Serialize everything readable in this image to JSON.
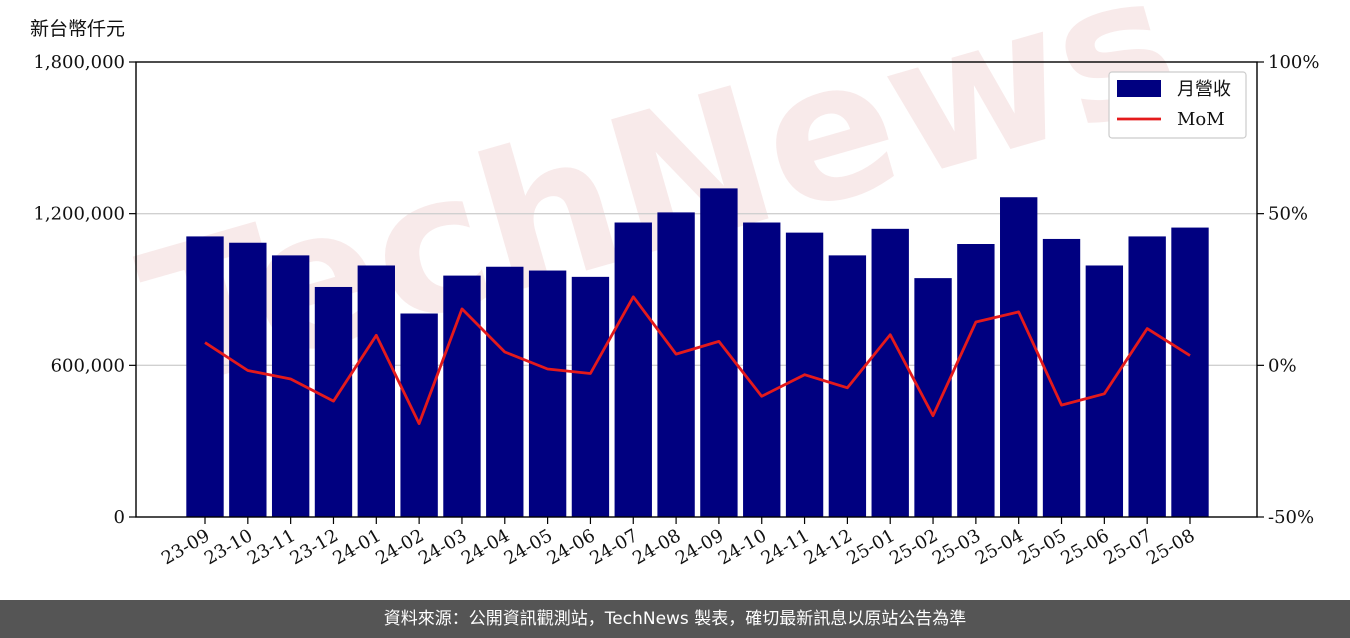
{
  "y_axis_unit": "新台幣仟元",
  "footer": "資料來源：公開資訊觀測站，TechNews 製表，確切最新訊息以原站公告為準",
  "watermark": "TechNews",
  "colors": {
    "bar": "#000080",
    "line": "#e41a1c",
    "grid": "#d0d0d0"
  },
  "chart_data": {
    "type": "bar",
    "categories": [
      "23-09",
      "23-10",
      "23-11",
      "23-12",
      "24-01",
      "24-02",
      "24-03",
      "24-04",
      "24-05",
      "24-06",
      "24-07",
      "24-08",
      "24-09",
      "24-10",
      "24-11",
      "24-12",
      "25-01",
      "25-02",
      "25-03",
      "25-04",
      "25-05",
      "25-06",
      "25-07",
      "25-08"
    ],
    "series": [
      {
        "name": "月營收",
        "type": "bar",
        "axis": "left",
        "values": [
          1110000,
          1085000,
          1035000,
          910000,
          995000,
          805000,
          955000,
          990000,
          975000,
          950000,
          1165000,
          1205000,
          1300000,
          1165000,
          1125000,
          1035000,
          1140000,
          945000,
          1080000,
          1265000,
          1100000,
          995000,
          1110000,
          1145000
        ]
      },
      {
        "name": "MoM",
        "type": "line",
        "axis": "right",
        "values": [
          7.5,
          -1.7,
          -4.5,
          -11.8,
          9.9,
          -19.2,
          18.6,
          4.4,
          -1.2,
          -2.7,
          22.6,
          3.7,
          7.9,
          -10.2,
          -3.1,
          -7.4,
          10.1,
          -16.6,
          14.3,
          17.6,
          -13.1,
          -9.4,
          12.1,
          3.2
        ]
      }
    ],
    "y_left": {
      "ylim": [
        0,
        1800000
      ],
      "ticks": [
        0,
        600000,
        1200000,
        1800000
      ],
      "tick_labels": [
        "0",
        "600,000",
        "1,200,000",
        "1,800,000"
      ]
    },
    "y_right": {
      "ylim": [
        -50,
        100
      ],
      "ticks": [
        -50,
        0,
        50,
        100
      ],
      "tick_labels": [
        "-50%",
        "0%",
        "50%",
        "100%"
      ]
    },
    "grid": "horizontal",
    "legend_position": "top-right"
  }
}
